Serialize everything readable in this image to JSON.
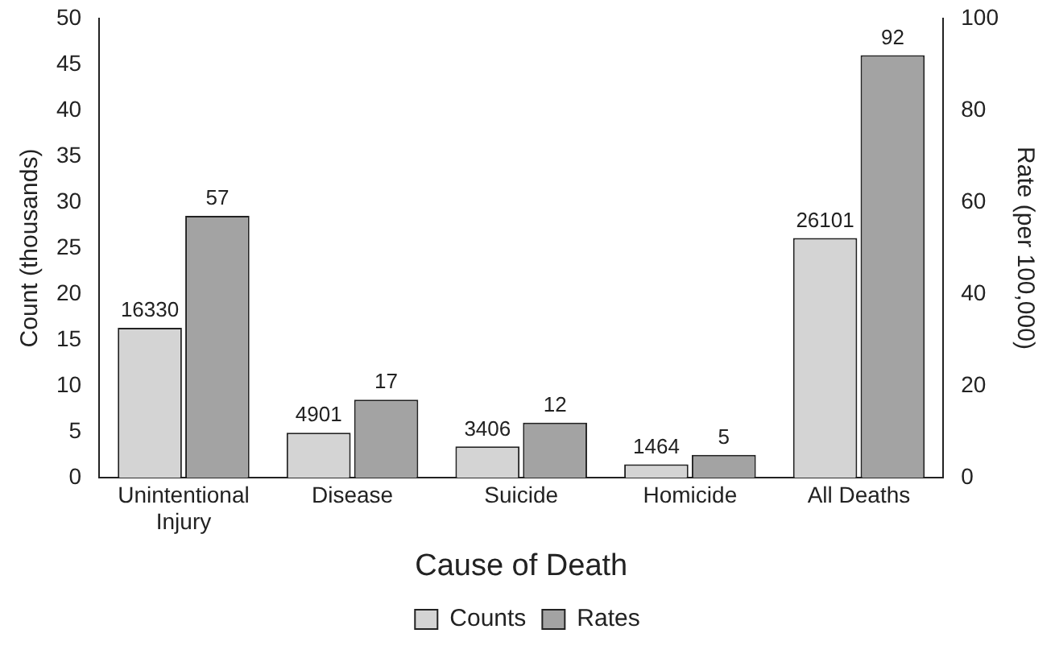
{
  "chart_data": {
    "type": "bar",
    "xlabel": "Cause of Death",
    "ylabel": "Count (thousands)",
    "y2label": "Rate (per 100,000)",
    "categories": [
      "Unintentional Injury",
      "Disease",
      "Suicide",
      "Homicide",
      "All Deaths"
    ],
    "series": [
      {
        "name": "Counts",
        "color": "#d4d4d4",
        "values": [
          16.33,
          4.901,
          3.406,
          1.464,
          26.101
        ]
      },
      {
        "name": "Rates",
        "color": "#a3a3a3",
        "axis": "y2",
        "values": [
          57,
          17,
          12,
          5,
          92
        ],
        "value_labels": [
          "57",
          "17",
          "12",
          "5",
          "92"
        ]
      }
    ],
    "ylim": [
      0,
      50
    ],
    "yticks": [
      0,
      5,
      10,
      15,
      20,
      25,
      30,
      35,
      40,
      45,
      50
    ],
    "y2lim": [
      0,
      100
    ],
    "y2ticks": [
      0,
      20,
      40,
      60,
      80,
      100
    ],
    "annotations": [
      {
        "text": "16330",
        "x": "Unintentional Injury",
        "y": 16.33
      },
      {
        "text": "4901",
        "x": "Disease",
        "y": 4.901
      },
      {
        "text": "3406",
        "x": "Suicide",
        "y": 3.406
      },
      {
        "text": "1464",
        "x": "Homicide",
        "y": 1.464
      },
      {
        "text": "26101",
        "x": "All Deaths",
        "y": 26.101
      }
    ],
    "grid": false,
    "legend": "bottom"
  }
}
